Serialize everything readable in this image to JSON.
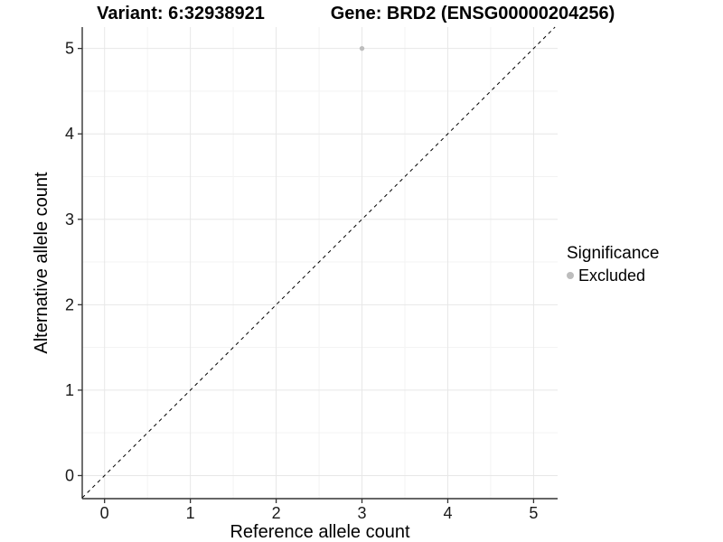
{
  "colors": {
    "background": "#ffffff",
    "grid_major": "#e7e7e7",
    "grid_minor": "#f3f3f3",
    "axis_line": "#333333",
    "tick_text": "#1a1a1a",
    "title_text": "#000000",
    "point": "#bdbdbd",
    "reference_line": "#000000"
  },
  "chart_data": {
    "type": "scatter",
    "title_left": "Variant: 6:32938921",
    "title_right": "Gene: BRD2 (ENSG00000204256)",
    "xlabel": "Reference allele count",
    "ylabel": "Alternative allele count",
    "x_ticks": [
      0,
      1,
      2,
      3,
      4,
      5
    ],
    "y_ticks": [
      0,
      1,
      2,
      3,
      4,
      5
    ],
    "x_minor": [
      0.5,
      1.5,
      2.5,
      3.5,
      4.5
    ],
    "y_minor": [
      0.5,
      1.5,
      2.5,
      3.5,
      4.5
    ],
    "xlim": [
      -0.26,
      5.28
    ],
    "ylim": [
      -0.27,
      5.25
    ],
    "grid": "major and minor, light grey on white panel",
    "reference_line": {
      "kind": "identity y=x",
      "style": "dashed",
      "color": "#000000"
    },
    "series": [
      {
        "name": "Excluded",
        "color": "#bdbdbd",
        "points": [
          {
            "x": 3,
            "y": 5
          }
        ]
      }
    ],
    "legend": {
      "title": "Significance",
      "position": "right",
      "items": [
        {
          "label": "Excluded",
          "color": "#bdbdbd"
        }
      ]
    }
  }
}
